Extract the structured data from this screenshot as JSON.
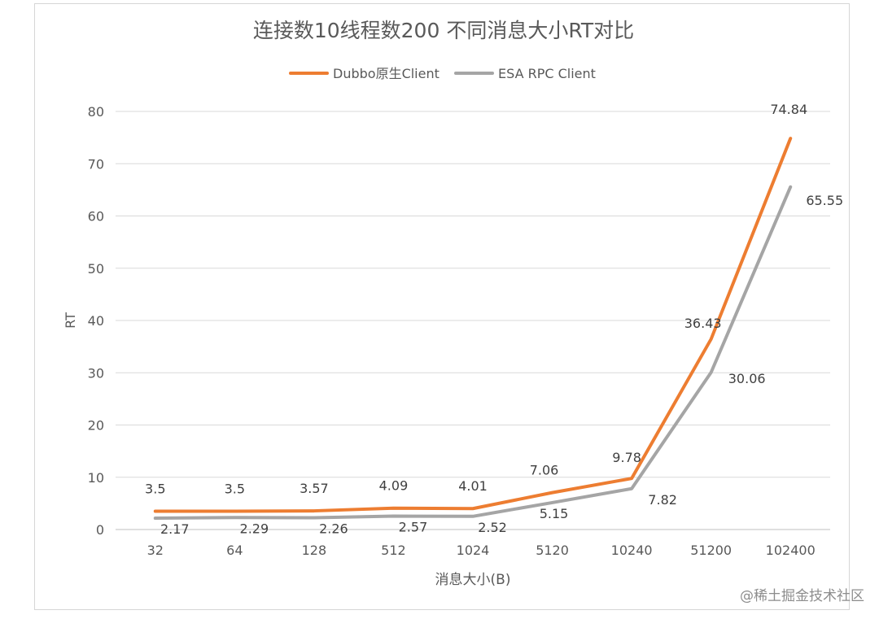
{
  "chart_data": {
    "type": "line",
    "title": "连接数10线程数200 不同消息大小RT对比",
    "xlabel": "消息大小(B)",
    "ylabel": "RT",
    "categories": [
      "32",
      "64",
      "128",
      "512",
      "1024",
      "5120",
      "10240",
      "51200",
      "102400"
    ],
    "ylim": [
      0,
      80
    ],
    "yticks": [
      0,
      10,
      20,
      30,
      40,
      50,
      60,
      70,
      80
    ],
    "grid": true,
    "legend_position": "top",
    "series": [
      {
        "name": "Dubbo原生Client",
        "color": "#ed7d31",
        "values": [
          3.5,
          3.5,
          3.57,
          4.09,
          4.01,
          7.06,
          9.78,
          36.43,
          74.84
        ],
        "labels": [
          "3.5",
          "3.5",
          "3.57",
          "4.09",
          "4.01",
          "7.06",
          "9.78",
          "36.43",
          "74.84"
        ]
      },
      {
        "name": "ESA RPC Client",
        "color": "#a5a5a5",
        "values": [
          2.17,
          2.29,
          2.26,
          2.57,
          2.52,
          5.15,
          7.82,
          30.06,
          65.55
        ],
        "labels": [
          "2.17",
          "2.29",
          "2.26",
          "2.57",
          "2.52",
          "5.15",
          "7.82",
          "30.06",
          "65.55"
        ]
      }
    ]
  },
  "watermark": "@稀土掘金技术社区"
}
